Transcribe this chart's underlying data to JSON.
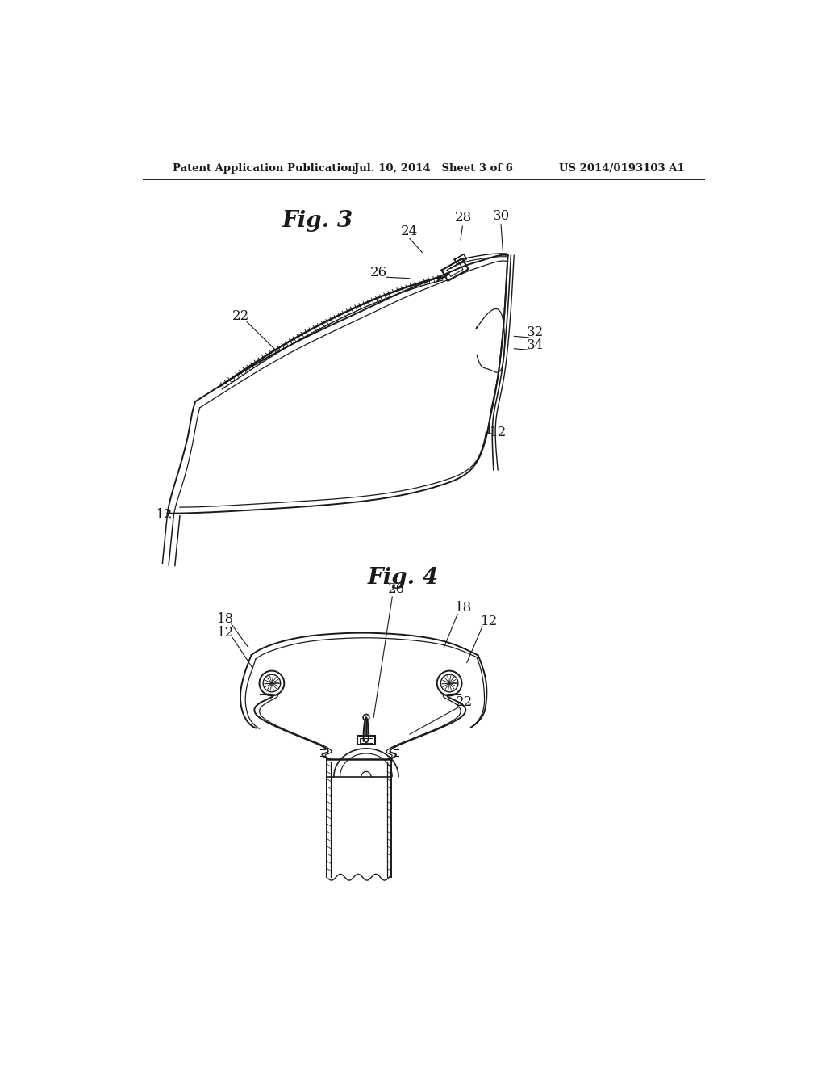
{
  "header_left": "Patent Application Publication",
  "header_mid": "Jul. 10, 2014   Sheet 3 of 6",
  "header_right": "US 2014/0193103 A1",
  "fig3_title": "Fig. 3",
  "fig4_title": "Fig. 4",
  "bg_color": "#ffffff",
  "line_color": "#1a1a1a",
  "gray_color": "#888888",
  "font_size_label": 12,
  "font_size_title": 20
}
